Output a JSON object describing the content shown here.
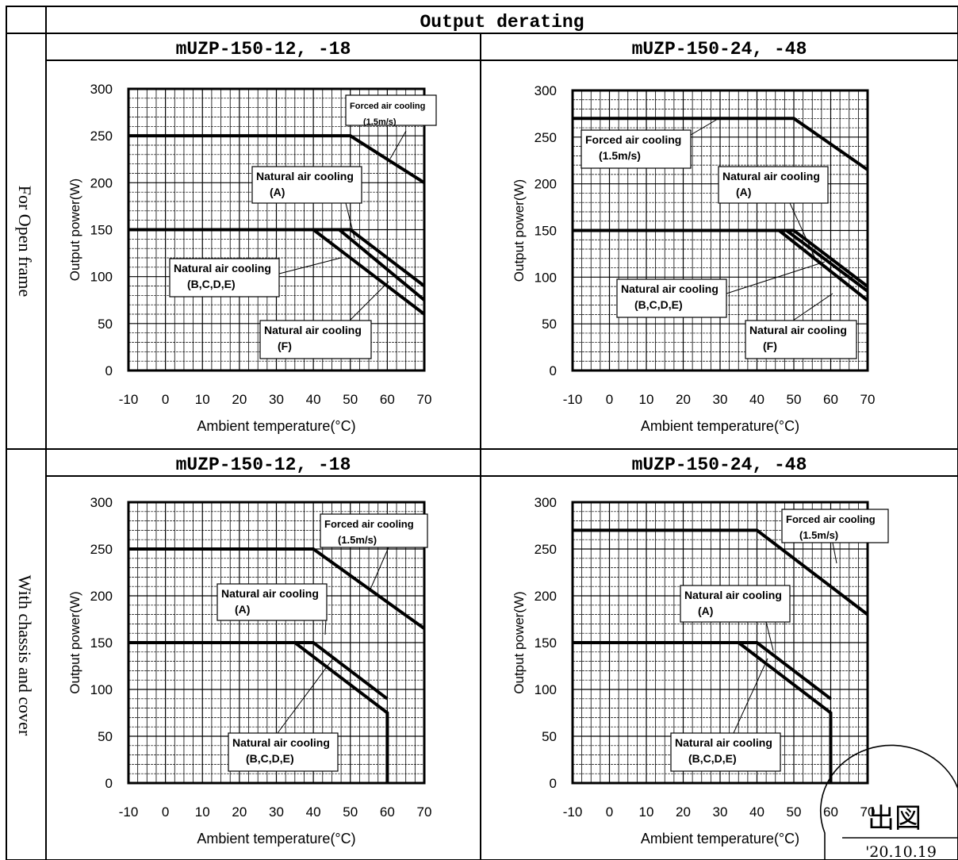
{
  "table": {
    "header": "Output derating",
    "row_labels": [
      "For Open frame",
      "With chassis and cover"
    ],
    "col_titles": [
      "mUZP-150-12, -18",
      "mUZP-150-24, -48",
      "mUZP-150-12, -18",
      "mUZP-150-24, -48"
    ]
  },
  "stamp": {
    "kanji": "出図",
    "date": "'20.10.19"
  },
  "chart_data": [
    {
      "type": "line",
      "title": "mUZP-150-12, -18",
      "group": "For Open frame",
      "xlabel": "Ambient temperature(°C)",
      "ylabel": "Output power(W)",
      "xlim": [
        -10,
        70
      ],
      "ylim": [
        0,
        300
      ],
      "xticks": [
        -10,
        0,
        10,
        20,
        30,
        40,
        50,
        60,
        70
      ],
      "yticks": [
        0,
        50,
        100,
        150,
        200,
        250,
        300
      ],
      "grid": true,
      "series": [
        {
          "name": "Forced air cooling (1.5m/s)",
          "x": [
            -10,
            50,
            70
          ],
          "y": [
            250,
            250,
            200
          ]
        },
        {
          "name": "Natural air cooling (A)",
          "x": [
            -10,
            50,
            70
          ],
          "y": [
            150,
            150,
            90
          ]
        },
        {
          "name": "Natural air cooling (B,C,D,E)",
          "x": [
            -10,
            47,
            70
          ],
          "y": [
            150,
            150,
            75
          ]
        },
        {
          "name": "Natural air cooling (F)",
          "x": [
            -10,
            40,
            70
          ],
          "y": [
            150,
            150,
            60
          ]
        }
      ],
      "annotations": [
        {
          "lines": [
            "Forced air cooling",
            "(1.5m/s)"
          ],
          "small": true
        },
        {
          "lines": [
            "Natural air cooling",
            "(A)"
          ]
        },
        {
          "lines": [
            "Natural air cooling",
            "(B,C,D,E)"
          ]
        },
        {
          "lines": [
            "Natural air cooling",
            "(F)"
          ]
        }
      ]
    },
    {
      "type": "line",
      "title": "mUZP-150-24, -48",
      "group": "For Open frame",
      "xlabel": "Ambient temperature(°C)",
      "ylabel": "Output power(W)",
      "xlim": [
        -10,
        70
      ],
      "ylim": [
        0,
        300
      ],
      "xticks": [
        -10,
        0,
        10,
        20,
        30,
        40,
        50,
        60,
        70
      ],
      "yticks": [
        0,
        50,
        100,
        150,
        200,
        250,
        300
      ],
      "grid": true,
      "series": [
        {
          "name": "Forced air cooling (1.5m/s)",
          "x": [
            -10,
            50,
            70
          ],
          "y": [
            270,
            270,
            215
          ]
        },
        {
          "name": "Natural air cooling (A)",
          "x": [
            -10,
            50,
            70
          ],
          "y": [
            150,
            150,
            90
          ]
        },
        {
          "name": "Natural air cooling (B,C,D,E)",
          "x": [
            -10,
            48,
            70
          ],
          "y": [
            150,
            150,
            85
          ]
        },
        {
          "name": "Natural air cooling (F)",
          "x": [
            -10,
            46,
            70
          ],
          "y": [
            150,
            150,
            75
          ]
        }
      ],
      "annotations": [
        {
          "lines": [
            "Forced air cooling",
            "(1.5m/s)"
          ]
        },
        {
          "lines": [
            "Natural air cooling",
            "(A)"
          ]
        },
        {
          "lines": [
            "Natural air cooling",
            "(B,C,D,E)"
          ]
        },
        {
          "lines": [
            "Natural air cooling",
            "(F)"
          ]
        }
      ]
    },
    {
      "type": "line",
      "title": "mUZP-150-12, -18",
      "group": "With chassis and cover",
      "xlabel": "Ambient temperature(°C)",
      "ylabel": "Output power(W)",
      "xlim": [
        -10,
        70
      ],
      "ylim": [
        0,
        300
      ],
      "xticks": [
        -10,
        0,
        10,
        20,
        30,
        40,
        50,
        60,
        70
      ],
      "yticks": [
        0,
        50,
        100,
        150,
        200,
        250,
        300
      ],
      "grid": true,
      "series": [
        {
          "name": "Forced air cooling (1.5m/s)",
          "x": [
            -10,
            40,
            70
          ],
          "y": [
            250,
            250,
            165
          ]
        },
        {
          "name": "Natural air cooling (A)",
          "x": [
            -10,
            40,
            60
          ],
          "y": [
            150,
            150,
            90
          ]
        },
        {
          "name": "Natural air cooling (B,C,D,E)",
          "x": [
            -10,
            35,
            60,
            60
          ],
          "y": [
            150,
            150,
            75,
            0
          ]
        }
      ],
      "annotations": [
        {
          "lines": [
            "Forced air cooling",
            "(1.5m/s)"
          ]
        },
        {
          "lines": [
            "Natural air cooling",
            "(A)"
          ]
        },
        {
          "lines": [
            "Natural air cooling",
            "(B,C,D,E)"
          ]
        }
      ]
    },
    {
      "type": "line",
      "title": "mUZP-150-24, -48",
      "group": "With chassis and cover",
      "xlabel": "Ambient temperature(°C)",
      "ylabel": "Output power(W)",
      "xlim": [
        -10,
        70
      ],
      "ylim": [
        0,
        300
      ],
      "xticks": [
        -10,
        0,
        10,
        20,
        30,
        40,
        50,
        60,
        70
      ],
      "yticks": [
        0,
        50,
        100,
        150,
        200,
        250,
        300
      ],
      "grid": true,
      "series": [
        {
          "name": "Forced air cooling (1.5m/s)",
          "x": [
            -10,
            40,
            70
          ],
          "y": [
            270,
            270,
            180
          ]
        },
        {
          "name": "Natural air cooling (A)",
          "x": [
            -10,
            40,
            60
          ],
          "y": [
            150,
            150,
            90
          ]
        },
        {
          "name": "Natural air cooling (B,C,D,E)",
          "x": [
            -10,
            35,
            60,
            60
          ],
          "y": [
            150,
            150,
            75,
            0
          ]
        }
      ],
      "annotations": [
        {
          "lines": [
            "Forced air cooling",
            "(1.5m/s)"
          ]
        },
        {
          "lines": [
            "Natural air cooling",
            "(A)"
          ]
        },
        {
          "lines": [
            "Natural air cooling",
            "(B,C,D,E)"
          ]
        }
      ]
    }
  ]
}
